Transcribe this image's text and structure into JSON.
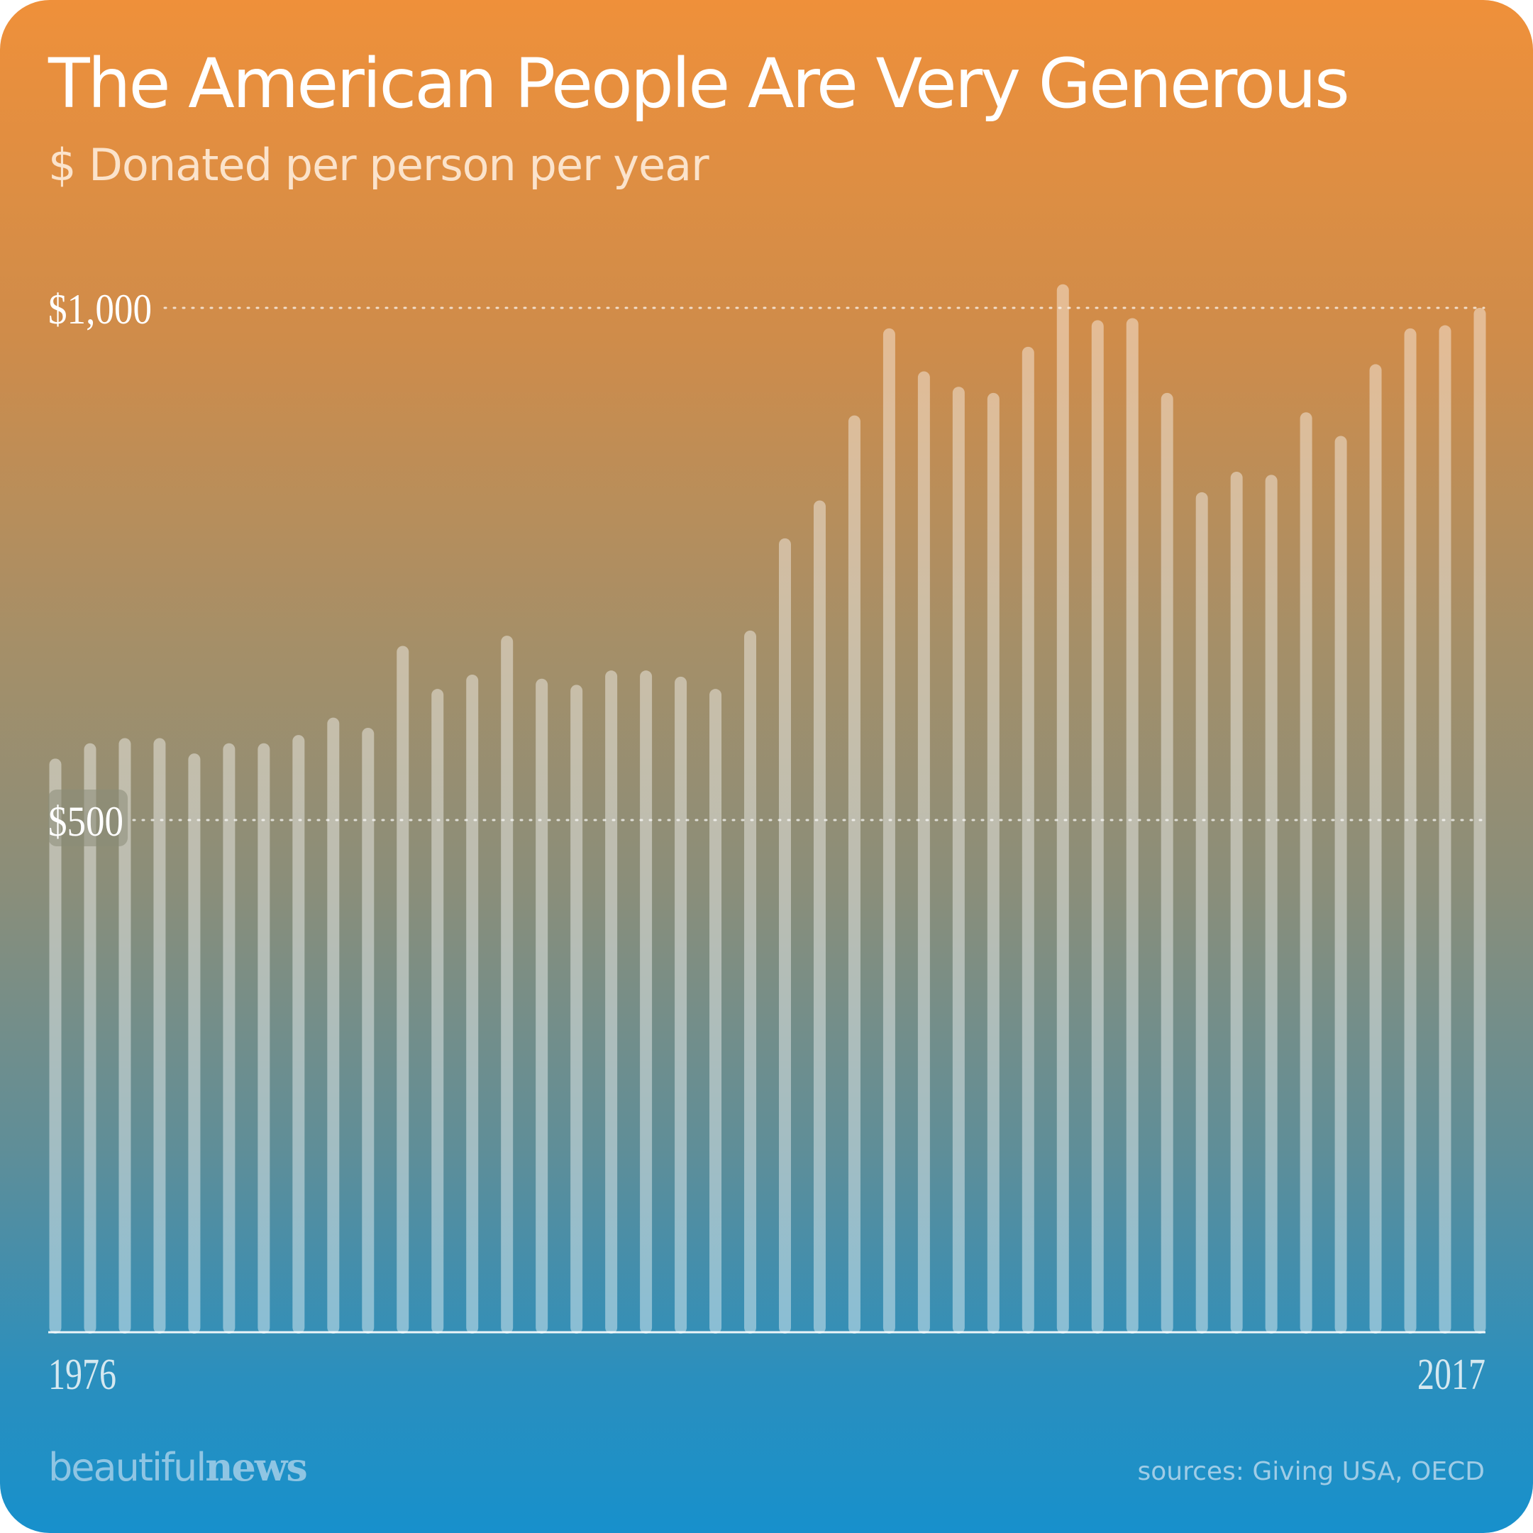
{
  "title": "The American People Are Very Generous",
  "subtitle": "$ Donated per person per year",
  "brand": {
    "part1": "beautiful",
    "part2": "news"
  },
  "sources": "sources: Giving USA, OECD",
  "colors": {
    "bar": "#ffffff",
    "gridline": "#ffffff",
    "baseline": "#ffffff",
    "gradient_top": "#ef903a",
    "gradient_bottom": "#1790cc"
  },
  "chart_data": {
    "type": "bar",
    "title": "The American People Are Very Generous",
    "subtitle": "$ Donated per person per year",
    "xlabel": "",
    "ylabel": "",
    "categories": [
      "1976",
      "1977",
      "1978",
      "1979",
      "1980",
      "1981",
      "1982",
      "1983",
      "1984",
      "1985",
      "1986",
      "1987",
      "1988",
      "1989",
      "1990",
      "1991",
      "1992",
      "1993",
      "1994",
      "1995",
      "1996",
      "1997",
      "1998",
      "1999",
      "2000",
      "2001",
      "2002",
      "2003",
      "2004",
      "2005",
      "2006",
      "2007",
      "2008",
      "2009",
      "2010",
      "2011",
      "2012",
      "2013",
      "2014",
      "2015",
      "2016",
      "2017"
    ],
    "x_tick_labels": [
      "1976",
      "2017"
    ],
    "values": [
      560,
      575,
      580,
      580,
      565,
      575,
      575,
      583,
      600,
      590,
      670,
      628,
      642,
      680,
      638,
      632,
      646,
      646,
      640,
      628,
      685,
      775,
      812,
      895,
      980,
      938,
      923,
      917,
      962,
      1023,
      988,
      990,
      917,
      820,
      840,
      837,
      898,
      875,
      945,
      980,
      983,
      1000
    ],
    "ylim": [
      0,
      1000
    ],
    "y_ticks": [
      {
        "value": 500,
        "label": "$500"
      },
      {
        "value": 1000,
        "label": "$1,000"
      }
    ],
    "grid": "dotted horizontal lines at $500 and $1,000",
    "legend": "none"
  }
}
